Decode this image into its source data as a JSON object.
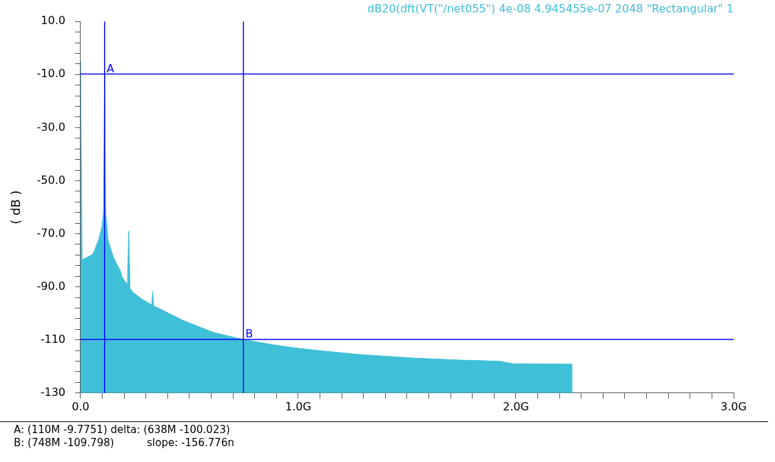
{
  "chart_data": {
    "type": "area",
    "title": "dB20(dft(VT(\"/net055\") 4e-08 4.945455e-07 2048 \"Rectangular\" 1",
    "ylabel": "( dB )",
    "x": [
      0,
      0,
      0.007,
      0.056,
      0.083,
      0.099,
      0.105,
      0.11,
      0.115,
      0.126,
      0.149,
      0.165,
      0.182,
      0.192,
      0.215,
      0.221,
      0.227,
      0.238,
      0.281,
      0.327,
      0.331,
      0.335,
      0.403,
      0.469,
      0.552,
      0.611,
      0.72,
      0.748,
      0.875,
      0.984,
      1.107,
      1.282,
      1.526,
      1.744,
      1.923,
      1.989,
      2.256,
      2.256
    ],
    "series": [
      {
        "color": "#40bfd8",
        "values": [
          -130,
          -5,
          -79.8,
          -77.7,
          -72.3,
          -67,
          -61.6,
          -9.8,
          -61.6,
          -72.3,
          -78.5,
          -81.2,
          -83.8,
          -86.5,
          -89.2,
          -69,
          -90.5,
          -91.9,
          -94.6,
          -96.8,
          -91.6,
          -97.1,
          -99.9,
          -102.6,
          -105.3,
          -107.2,
          -109.3,
          -109.8,
          -111.7,
          -113,
          -114.1,
          -115.5,
          -116.8,
          -117.6,
          -118,
          -119,
          -119.1,
          -130
        ]
      }
    ],
    "xlim": [
      0,
      3
    ],
    "xticks": [
      {
        "value": 0,
        "label": "0.0"
      },
      {
        "value": 0.1,
        "label": null
      },
      {
        "value": 0.2,
        "label": null
      },
      {
        "value": 0.3,
        "label": null
      },
      {
        "value": 0.4,
        "label": null
      },
      {
        "value": 0.5,
        "label": null
      },
      {
        "value": 0.6,
        "label": null
      },
      {
        "value": 0.7,
        "label": null
      },
      {
        "value": 0.8,
        "label": null
      },
      {
        "value": 0.9,
        "label": null
      },
      {
        "value": 1,
        "label": "1.0G"
      },
      {
        "value": 1.1,
        "label": null
      },
      {
        "value": 1.2,
        "label": null
      },
      {
        "value": 1.3,
        "label": null
      },
      {
        "value": 1.4,
        "label": null
      },
      {
        "value": 1.5,
        "label": null
      },
      {
        "value": 1.6,
        "label": null
      },
      {
        "value": 1.7,
        "label": null
      },
      {
        "value": 1.8,
        "label": null
      },
      {
        "value": 1.9,
        "label": null
      },
      {
        "value": 2,
        "label": "2.0G"
      },
      {
        "value": 2.1,
        "label": null
      },
      {
        "value": 2.2,
        "label": null
      },
      {
        "value": 2.3,
        "label": null
      },
      {
        "value": 2.4,
        "label": null
      },
      {
        "value": 2.5,
        "label": null
      },
      {
        "value": 2.6,
        "label": null
      },
      {
        "value": 2.7,
        "label": null
      },
      {
        "value": 2.8,
        "label": null
      },
      {
        "value": 2.9,
        "label": null
      },
      {
        "value": 3,
        "label": "3.0G"
      }
    ],
    "ylim": [
      -130,
      10
    ],
    "yticks": [
      {
        "value": 10,
        "label": "10.0"
      },
      {
        "value": 6,
        "label": null
      },
      {
        "value": 2,
        "label": null
      },
      {
        "value": -2,
        "label": null
      },
      {
        "value": -6,
        "label": null
      },
      {
        "value": -10,
        "label": "-10.0"
      },
      {
        "value": -14,
        "label": null
      },
      {
        "value": -18,
        "label": null
      },
      {
        "value": -22,
        "label": null
      },
      {
        "value": -26,
        "label": null
      },
      {
        "value": -30,
        "label": "-30.0"
      },
      {
        "value": -34,
        "label": null
      },
      {
        "value": -38,
        "label": null
      },
      {
        "value": -42,
        "label": null
      },
      {
        "value": -46,
        "label": null
      },
      {
        "value": -50,
        "label": "-50.0"
      },
      {
        "value": -54,
        "label": null
      },
      {
        "value": -58,
        "label": null
      },
      {
        "value": -62,
        "label": null
      },
      {
        "value": -66,
        "label": null
      },
      {
        "value": -70,
        "label": "-70.0"
      },
      {
        "value": -74,
        "label": null
      },
      {
        "value": -78,
        "label": null
      },
      {
        "value": -82,
        "label": null
      },
      {
        "value": -86,
        "label": null
      },
      {
        "value": -90,
        "label": "-90.0"
      },
      {
        "value": -94,
        "label": null
      },
      {
        "value": -98,
        "label": null
      },
      {
        "value": -102,
        "label": null
      },
      {
        "value": -106,
        "label": null
      },
      -110,
      {
        "value": -114,
        "label": null
      },
      {
        "value": -118,
        "label": null
      },
      {
        "value": -122,
        "label": null
      },
      {
        "value": -126,
        "label": null
      },
      -130
    ],
    "grid": false,
    "legend": false,
    "marker": "none",
    "ref_lines": [
      {
        "axis": "x",
        "value": 0.11,
        "color": "#0000ff"
      },
      {
        "axis": "y",
        "value": -9.7751,
        "label": "A",
        "color": "#0000ff"
      },
      {
        "axis": "x",
        "value": 0.748,
        "color": "#0000ff"
      },
      {
        "axis": "y",
        "value": -109.798,
        "label": "B",
        "color": "#0000ff"
      }
    ],
    "annotations": [
      "A: (110M -9.7751) delta: (638M -100.023)",
      "B: (748M -109.798)          slope: -156.776n"
    ]
  }
}
